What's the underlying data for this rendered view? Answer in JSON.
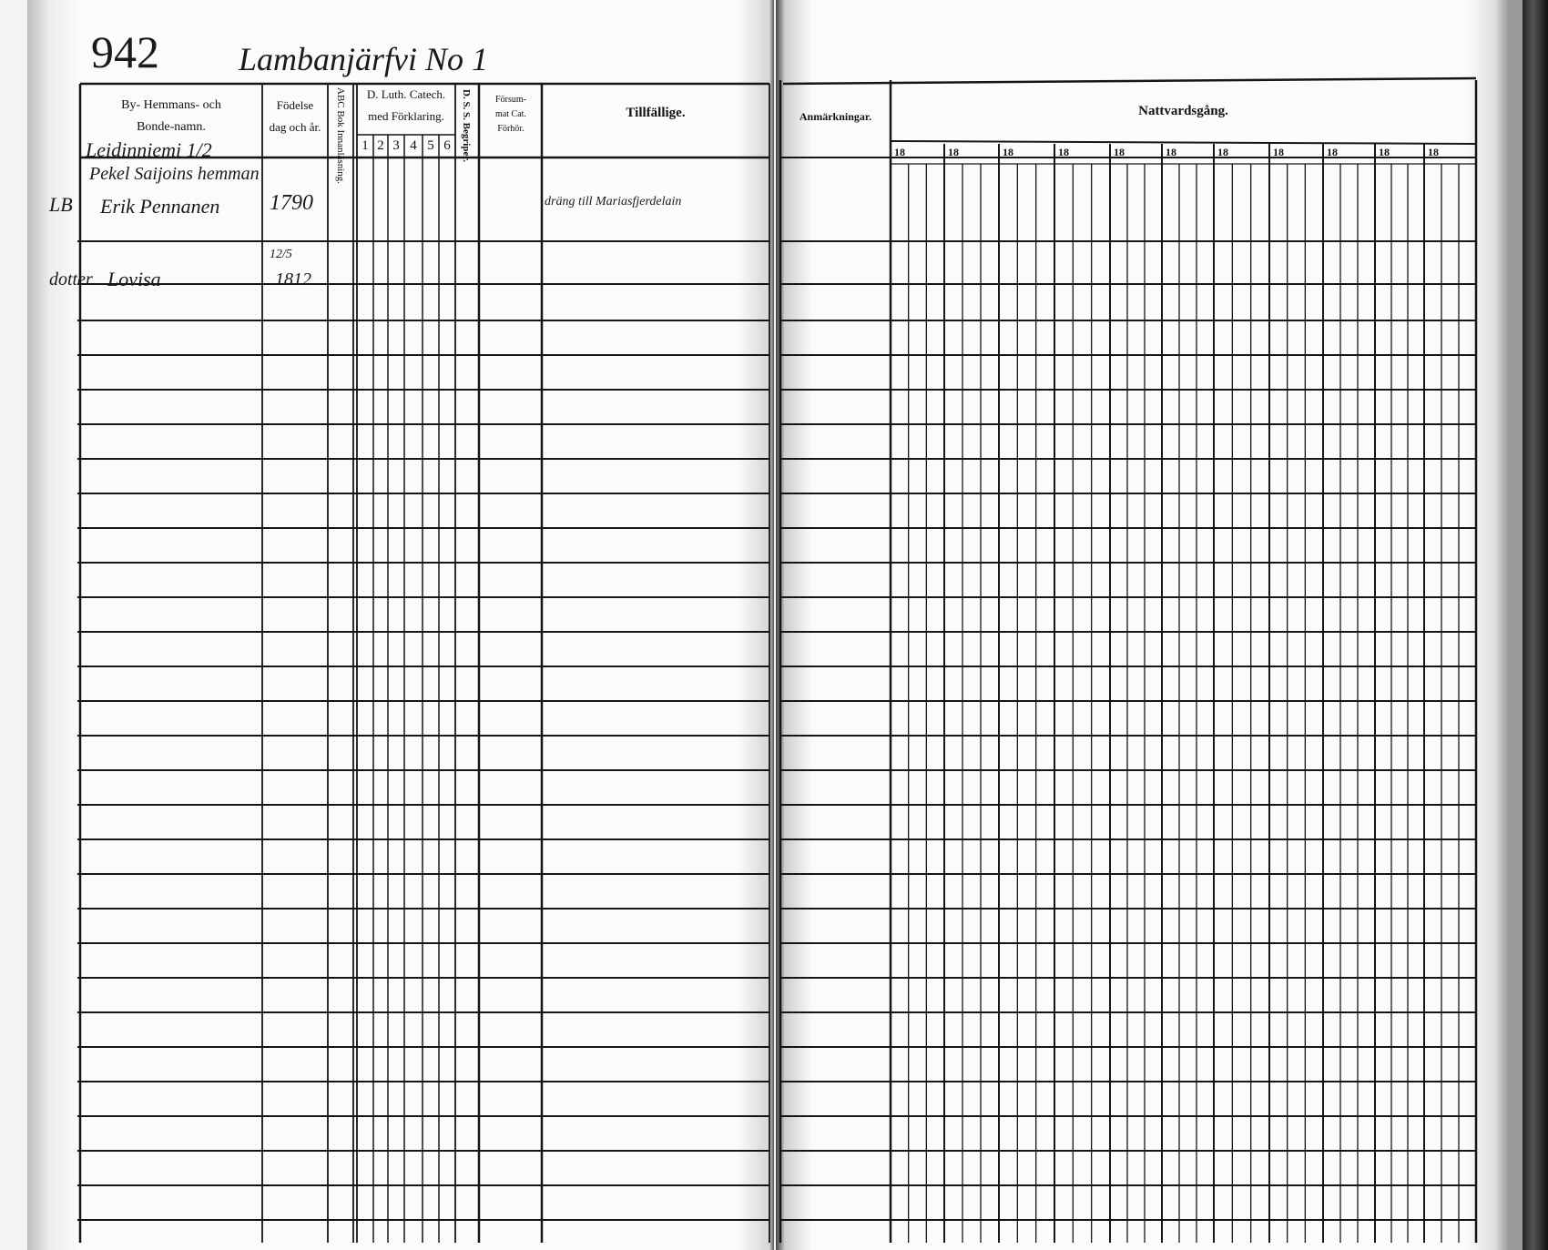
{
  "page_number": "942",
  "village_title": "Lambanjärfvi No 1",
  "left_headers": {
    "name_col": [
      "By- Hemmans- och",
      "Bonde-namn."
    ],
    "birth_col": [
      "Födelse",
      "dag och år."
    ],
    "abc_col": "ABC Bok Innanläsning.",
    "catech_col": [
      "D. Luth. Catech.",
      "med Förklaring."
    ],
    "catech_subcols": [
      "1",
      "2",
      "3",
      "4",
      "5",
      "6"
    ],
    "dss_col": "D. S. S. Begriper.",
    "forsummat_col": [
      "Försum-",
      "mat Cat.",
      "Förhör."
    ],
    "tillfallige_col": "Tillfällige."
  },
  "right_headers": {
    "anmarkningar_col": "Anmärkningar.",
    "nattvard_col": "Nattvardsgång.",
    "year_cols": [
      "18",
      "18",
      "18",
      "18",
      "18",
      "18",
      "18",
      "18",
      "18",
      "18",
      "18"
    ]
  },
  "entries": {
    "village": "Leidinniemi 1/2",
    "farm": "Pekel Saijoins hemman",
    "husband_mark": "LB",
    "husband_name": "Erik Pennanen",
    "husband_birth": "1790",
    "husband_note": "dräng till Mariasfjerdelain",
    "daughter_label": "dotter",
    "daughter_name": "Lovisa",
    "daughter_birth_day": "12/5",
    "daughter_birth_year": "1812"
  }
}
